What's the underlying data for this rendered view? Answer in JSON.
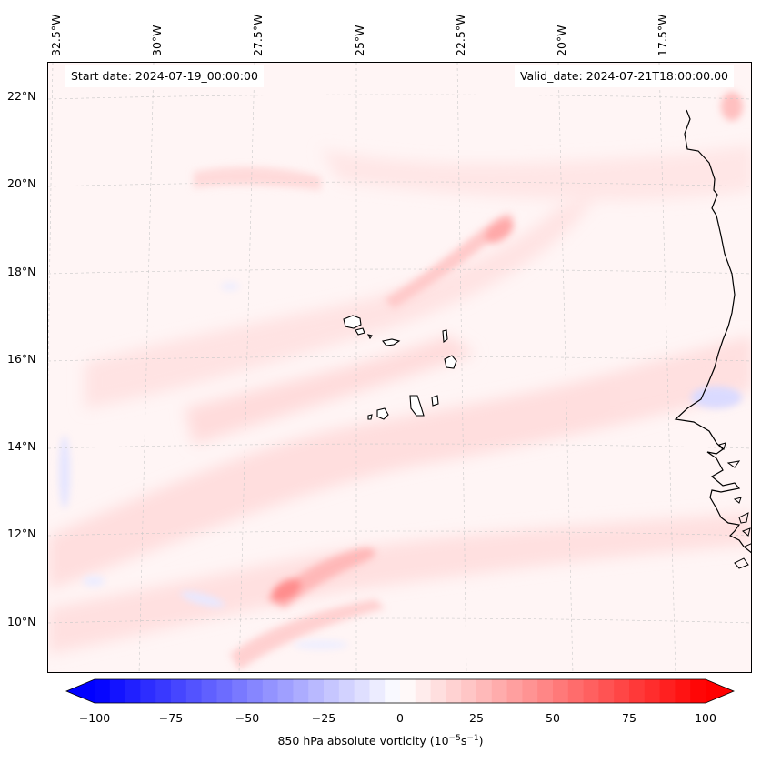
{
  "map": {
    "start_date": "Start date: 2024-07-19_00:00:00",
    "valid_date": "Valid_date: 2024-07-21T18:00:00.00",
    "lon_labels": [
      "32.5°W",
      "30°W",
      "27.5°W",
      "25°W",
      "22.5°W",
      "20°W",
      "17.5°W"
    ],
    "lat_labels": [
      "22°N",
      "20°N",
      "18°N",
      "16°N",
      "14°N",
      "12°N",
      "10°N"
    ],
    "variable": "850 hPa absolute vorticity",
    "units_prefix": "(10",
    "units_exp1": "−5",
    "units_mid": "s",
    "units_exp2": "−1",
    "units_suffix": ")",
    "colorbar_ticks": [
      "−100",
      "−75",
      "−50",
      "−25",
      "0",
      "25",
      "50",
      "75",
      "100"
    ],
    "colorbar_min": -100,
    "colorbar_max": 100,
    "colormap": "bwr",
    "coast_color": "#000000"
  }
}
